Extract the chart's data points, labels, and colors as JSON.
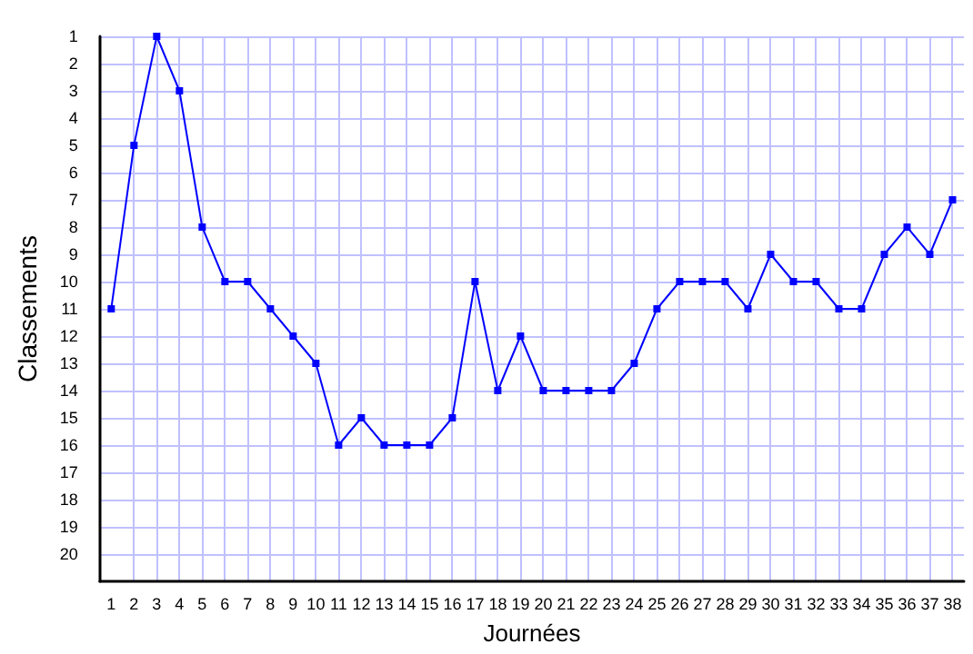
{
  "chart_data": {
    "type": "line",
    "xlabel": "Journées",
    "ylabel": "Classements",
    "x": [
      1,
      2,
      3,
      4,
      5,
      6,
      7,
      8,
      9,
      10,
      11,
      12,
      13,
      14,
      15,
      16,
      17,
      18,
      19,
      20,
      21,
      22,
      23,
      24,
      25,
      26,
      27,
      28,
      29,
      30,
      31,
      32,
      33,
      34,
      35,
      36,
      37,
      38
    ],
    "series": [
      {
        "color": "#0000ff",
        "values": [
          11,
          5,
          1,
          3,
          8,
          10,
          10,
          11,
          12,
          13,
          16,
          15,
          16,
          16,
          16,
          15,
          10,
          14,
          12,
          14,
          14,
          14,
          14,
          13,
          11,
          10,
          10,
          10,
          11,
          9,
          10,
          10,
          11,
          11,
          9,
          8,
          9,
          7
        ]
      }
    ],
    "xlim": [
      0.5,
      38.5
    ],
    "xticks": [
      1,
      2,
      3,
      4,
      5,
      6,
      7,
      8,
      9,
      10,
      11,
      12,
      13,
      14,
      15,
      16,
      17,
      18,
      19,
      20,
      21,
      22,
      23,
      24,
      25,
      26,
      27,
      28,
      29,
      30,
      31,
      32,
      33,
      34,
      35,
      36,
      37,
      38
    ],
    "ylim": [
      21,
      1
    ],
    "yticks": [
      1,
      2,
      3,
      4,
      5,
      6,
      7,
      8,
      9,
      10,
      11,
      12,
      13,
      14,
      15,
      16,
      17,
      18,
      19,
      20
    ],
    "grid": true,
    "marker": "square",
    "line_style": "solid"
  }
}
